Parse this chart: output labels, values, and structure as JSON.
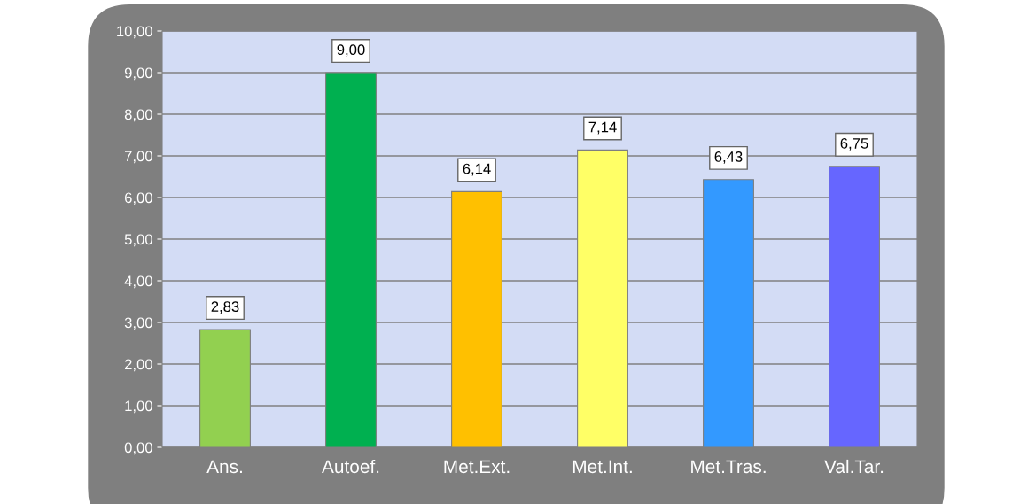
{
  "chart_data": {
    "type": "bar",
    "categories": [
      "Ans.",
      "Autoef.",
      "Met.Ext.",
      "Met.Int.",
      "Met.Tras.",
      "Val.Tar."
    ],
    "values": [
      2.83,
      9.0,
      6.14,
      7.14,
      6.43,
      6.75
    ],
    "colors": [
      "#92d050",
      "#00b050",
      "#ffc000",
      "#ffff66",
      "#3399ff",
      "#6666ff"
    ],
    "value_labels": [
      "2,83",
      "9,00",
      "6,14",
      "7,14",
      "6,43",
      "6,75"
    ],
    "ylim": [
      0,
      10
    ],
    "yticks": [
      {
        "value": 0,
        "label": "0,00"
      },
      {
        "value": 1,
        "label": "1,00"
      },
      {
        "value": 2,
        "label": "2,00"
      },
      {
        "value": 3,
        "label": "3,00"
      },
      {
        "value": 4,
        "label": "4,00"
      },
      {
        "value": 5,
        "label": "5,00"
      },
      {
        "value": 6,
        "label": "6,00"
      },
      {
        "value": 7,
        "label": "7,00"
      },
      {
        "value": 8,
        "label": "8,00"
      },
      {
        "value": 9,
        "label": "9,00"
      },
      {
        "value": 10,
        "label": "10,00"
      }
    ],
    "grid": "y",
    "legend": false
  }
}
